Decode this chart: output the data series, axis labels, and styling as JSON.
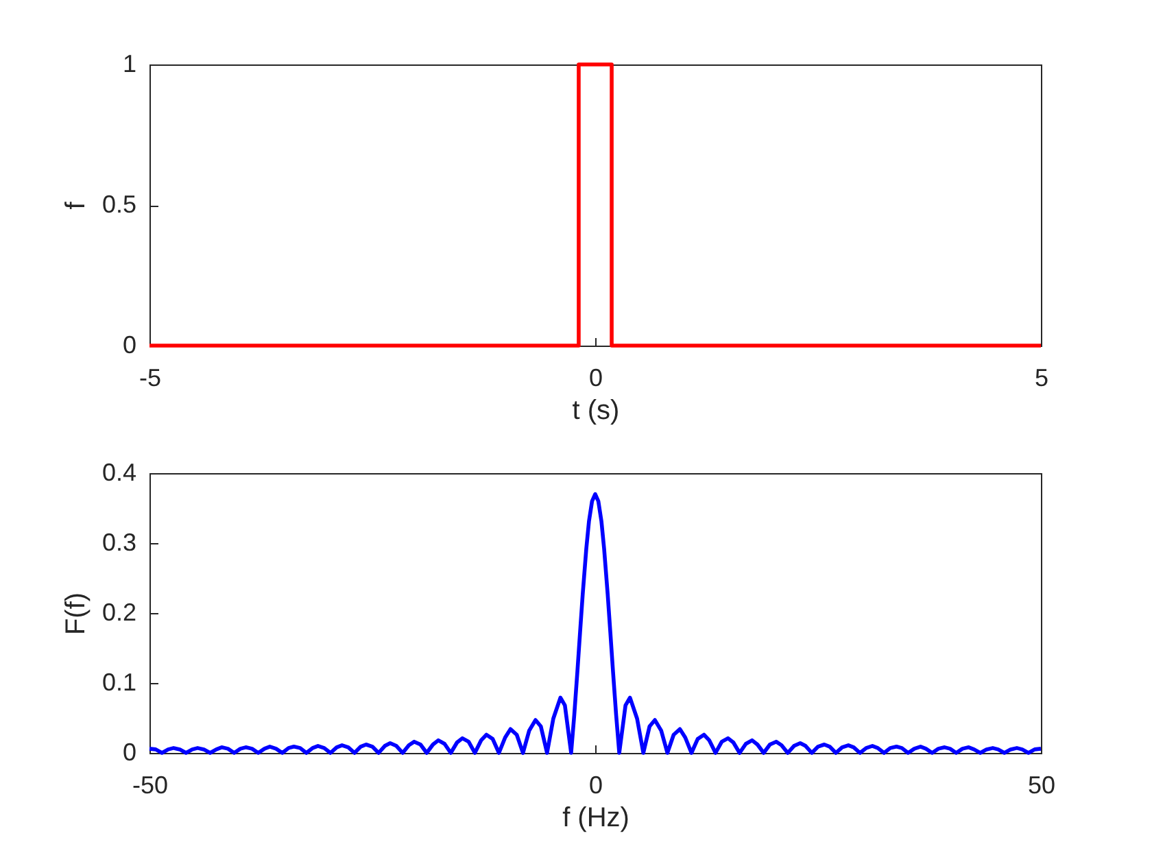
{
  "chart_data": [
    {
      "type": "line",
      "xlabel": "t (s)",
      "ylabel": "f",
      "x": [
        -5,
        -0.185,
        -0.185,
        0.185,
        0.185,
        5
      ],
      "values": [
        0,
        0,
        1,
        1,
        0,
        0
      ],
      "color": "#ff0000",
      "xlim": [
        -5,
        5
      ],
      "ylim": [
        0,
        1
      ],
      "xticks": [
        -5,
        0,
        5
      ],
      "yticks": [
        0,
        0.5,
        1
      ]
    },
    {
      "type": "line",
      "xlabel": "f (Hz)",
      "ylabel": "F(f)",
      "color": "#0000ff",
      "xlim": [
        -50,
        50
      ],
      "ylim": [
        0,
        0.4
      ],
      "xticks": [
        -50,
        0,
        50
      ],
      "yticks": [
        0,
        0.1,
        0.2,
        0.3,
        0.4
      ],
      "x": [
        -50,
        -49.3,
        -48.6,
        -47.9,
        -47.3,
        -46.6,
        -45.9,
        -45.2,
        -44.6,
        -43.9,
        -43.2,
        -42.5,
        -41.9,
        -41.2,
        -40.5,
        -39.8,
        -39.2,
        -38.5,
        -37.8,
        -37.1,
        -36.5,
        -35.8,
        -35.1,
        -34.4,
        -33.8,
        -33.1,
        -32.4,
        -31.7,
        -31.1,
        -30.4,
        -29.7,
        -29.0,
        -28.4,
        -27.7,
        -27.0,
        -26.3,
        -25.7,
        -25.0,
        -24.3,
        -23.6,
        -23.0,
        -22.3,
        -21.6,
        -20.9,
        -20.3,
        -19.6,
        -18.9,
        -18.2,
        -17.6,
        -16.9,
        -16.2,
        -15.5,
        -14.9,
        -14.2,
        -13.5,
        -12.8,
        -12.2,
        -11.5,
        -10.8,
        -10.1,
        -9.5,
        -8.8,
        -8.1,
        -7.4,
        -6.7,
        -6.1,
        -5.4,
        -4.7,
        -3.9,
        -3.4,
        -2.7,
        -2.35,
        -2.0,
        -1.7,
        -1.4,
        -1.0,
        -0.7,
        -0.35,
        0,
        0.35,
        0.7,
        1.0,
        1.4,
        1.7,
        2.0,
        2.35,
        2.7,
        3.4,
        3.9,
        4.7,
        5.4,
        6.1,
        6.7,
        7.4,
        8.1,
        8.8,
        9.5,
        10.1,
        10.8,
        11.5,
        12.2,
        12.8,
        13.5,
        14.2,
        14.9,
        15.5,
        16.2,
        16.9,
        17.6,
        18.2,
        18.9,
        19.6,
        20.3,
        20.9,
        21.6,
        22.3,
        23.0,
        23.6,
        24.3,
        25.0,
        25.7,
        26.3,
        27.0,
        27.7,
        28.4,
        29.0,
        29.7,
        30.4,
        31.1,
        31.7,
        32.4,
        33.1,
        33.8,
        34.4,
        35.1,
        35.8,
        36.5,
        37.1,
        37.8,
        38.5,
        39.2,
        39.8,
        40.5,
        41.2,
        41.9,
        42.5,
        43.2,
        43.9,
        44.6,
        45.2,
        45.9,
        46.6,
        47.3,
        47.9,
        48.6,
        49.3,
        50
      ],
      "values": [
        0.006,
        0.005,
        0,
        0.005,
        0.007,
        0.005,
        0,
        0.005,
        0.007,
        0.005,
        0,
        0.005,
        0.008,
        0.006,
        0,
        0.006,
        0.008,
        0.006,
        0,
        0.006,
        0.009,
        0.006,
        0,
        0.007,
        0.009,
        0.007,
        0,
        0.007,
        0.01,
        0.007,
        0,
        0.008,
        0.011,
        0.008,
        0,
        0.009,
        0.012,
        0.009,
        0,
        0.01,
        0.014,
        0.01,
        0,
        0.011,
        0.016,
        0.012,
        0,
        0.012,
        0.018,
        0.013,
        0,
        0.015,
        0.021,
        0.016,
        0,
        0.018,
        0.026,
        0.02,
        0,
        0.022,
        0.034,
        0.026,
        0,
        0.032,
        0.047,
        0.038,
        0,
        0.049,
        0.079,
        0.068,
        0,
        0.054,
        0.116,
        0.172,
        0.227,
        0.292,
        0.331,
        0.36,
        0.37,
        0.36,
        0.331,
        0.292,
        0.227,
        0.172,
        0.116,
        0.054,
        0,
        0.068,
        0.079,
        0.049,
        0,
        0.038,
        0.047,
        0.032,
        0,
        0.026,
        0.034,
        0.022,
        0,
        0.02,
        0.026,
        0.018,
        0,
        0.016,
        0.021,
        0.015,
        0,
        0.013,
        0.018,
        0.012,
        0,
        0.012,
        0.016,
        0.011,
        0,
        0.01,
        0.014,
        0.01,
        0,
        0.009,
        0.012,
        0.009,
        0,
        0.008,
        0.011,
        0.008,
        0,
        0.007,
        0.01,
        0.007,
        0,
        0.007,
        0.009,
        0.007,
        0,
        0.006,
        0.009,
        0.006,
        0,
        0.006,
        0.008,
        0.006,
        0,
        0.006,
        0.008,
        0.005,
        0,
        0.005,
        0.007,
        0.005,
        0,
        0.005,
        0.007,
        0.005,
        0,
        0.005,
        0.006
      ]
    }
  ]
}
